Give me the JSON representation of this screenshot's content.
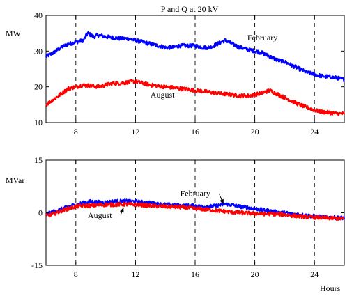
{
  "chart_data": [
    {
      "type": "line",
      "title": "P and Q at 20 kV",
      "ylabel": "MW",
      "xlabel": "",
      "xlim": [
        6,
        26
      ],
      "ylim": [
        10,
        40
      ],
      "xticks": [
        8,
        12,
        16,
        20,
        24
      ],
      "yticks": [
        10,
        20,
        30,
        40
      ],
      "vertical_dashed_lines": [
        8,
        12,
        16,
        20,
        24
      ],
      "grid": false,
      "series": [
        {
          "name": "February",
          "color": "#0000ff",
          "x": [
            6,
            6.5,
            7,
            7.5,
            8,
            8.5,
            8.8,
            9.2,
            9.5,
            10,
            10.5,
            11,
            11.5,
            12,
            12.5,
            13,
            13.5,
            14,
            14.5,
            15,
            15.5,
            16,
            16.5,
            17,
            17.5,
            18,
            18.5,
            19,
            19.5,
            20,
            20.5,
            21,
            21.5,
            22,
            22.5,
            23,
            23.5,
            24,
            24.5,
            25,
            25.5,
            26
          ],
          "y": [
            28.5,
            29.5,
            31.0,
            32.0,
            32.5,
            33.0,
            35.0,
            34.0,
            34.5,
            34.0,
            33.8,
            33.5,
            33.5,
            33.0,
            32.5,
            32.0,
            31.5,
            31.0,
            31.0,
            31.5,
            31.5,
            31.5,
            31.0,
            31.0,
            32.0,
            33.0,
            32.0,
            31.0,
            30.5,
            30.0,
            29.5,
            28.5,
            27.5,
            27.0,
            26.0,
            25.0,
            24.0,
            23.5,
            23.0,
            22.8,
            22.5,
            22.0
          ],
          "label": "February",
          "label_at": [
            19.5,
            33
          ]
        },
        {
          "name": "August",
          "color": "#ff0000",
          "x": [
            6,
            6.5,
            7,
            7.5,
            8,
            8.5,
            9,
            9.5,
            10,
            10.5,
            11,
            11.5,
            12,
            12.5,
            13,
            13.5,
            14,
            14.5,
            15,
            15.5,
            16,
            16.5,
            17,
            17.5,
            18,
            18.5,
            19,
            19.5,
            20,
            20.5,
            21,
            21.5,
            22,
            22.5,
            23,
            23.5,
            24,
            24.5,
            25,
            25.5,
            26
          ],
          "y": [
            15.0,
            16.5,
            18.0,
            19.5,
            20.0,
            20.5,
            20.3,
            20.0,
            20.5,
            21.0,
            21.0,
            21.3,
            21.5,
            21.0,
            20.5,
            20.2,
            20.0,
            19.8,
            19.5,
            19.3,
            19.0,
            18.8,
            18.5,
            18.2,
            18.0,
            17.8,
            17.5,
            17.5,
            17.8,
            18.3,
            19.0,
            18.0,
            17.0,
            16.0,
            15.0,
            14.2,
            13.5,
            13.0,
            12.8,
            12.5,
            12.5
          ],
          "label": "August",
          "label_at": [
            13,
            17
          ]
        }
      ]
    },
    {
      "type": "line",
      "title": "",
      "ylabel": "MVar",
      "xlabel": "Hours",
      "xlim": [
        6,
        26
      ],
      "ylim": [
        -15,
        15
      ],
      "xticks": [
        8,
        12,
        16,
        20,
        24
      ],
      "yticks": [
        -15,
        0,
        15
      ],
      "vertical_dashed_lines": [
        8,
        12,
        16,
        20,
        24
      ],
      "grid": false,
      "series": [
        {
          "name": "February",
          "color": "#0000ff",
          "x": [
            6,
            6.5,
            7,
            7.5,
            8,
            8.5,
            9,
            9.5,
            10,
            10.5,
            11,
            11.5,
            12,
            12.5,
            13,
            13.5,
            14,
            14.5,
            15,
            15.5,
            16,
            16.5,
            17,
            17.5,
            18,
            18.5,
            19,
            19.5,
            20,
            20.5,
            21,
            21.5,
            22,
            22.5,
            23,
            23.5,
            24,
            24.5,
            25,
            25.5,
            26
          ],
          "y": [
            -0.5,
            0.3,
            1.0,
            1.8,
            2.2,
            2.8,
            3.2,
            3.0,
            3.0,
            3.2,
            3.3,
            3.3,
            3.2,
            3.0,
            2.8,
            2.5,
            2.3,
            2.2,
            2.0,
            2.0,
            2.0,
            1.8,
            1.8,
            2.0,
            2.5,
            2.2,
            1.8,
            1.5,
            1.2,
            0.8,
            0.5,
            0.2,
            0.0,
            -0.3,
            -0.5,
            -0.8,
            -1.0,
            -1.2,
            -1.3,
            -1.4,
            -1.5
          ],
          "label": "February",
          "label_at": [
            15,
            4.8
          ],
          "arrow_to": [
            17.9,
            2.4
          ]
        },
        {
          "name": "August",
          "color": "#ff0000",
          "x": [
            6,
            6.5,
            7,
            7.5,
            8,
            8.5,
            9,
            9.5,
            10,
            10.5,
            11,
            11.5,
            12,
            12.5,
            13,
            13.5,
            14,
            14.5,
            15,
            15.5,
            16,
            16.5,
            17,
            17.5,
            18,
            18.5,
            19,
            19.5,
            20,
            20.5,
            21,
            21.5,
            22,
            22.5,
            23,
            23.5,
            24,
            24.5,
            25,
            25.5,
            26
          ],
          "y": [
            -1.0,
            -0.3,
            0.5,
            1.2,
            1.8,
            2.0,
            2.0,
            2.2,
            2.3,
            2.3,
            2.4,
            2.4,
            2.3,
            2.2,
            2.0,
            1.9,
            1.8,
            1.7,
            1.6,
            1.4,
            1.2,
            1.0,
            0.8,
            0.6,
            0.4,
            0.2,
            0.0,
            -0.1,
            -0.2,
            -0.3,
            -0.3,
            -0.4,
            -0.5,
            -0.8,
            -1.0,
            -1.2,
            -1.3,
            -1.4,
            -1.5,
            -1.6,
            -1.7
          ],
          "label": "August",
          "label_at": [
            8.8,
            -1.5
          ],
          "arrow_to": [
            11.2,
            1.5
          ]
        }
      ]
    }
  ]
}
